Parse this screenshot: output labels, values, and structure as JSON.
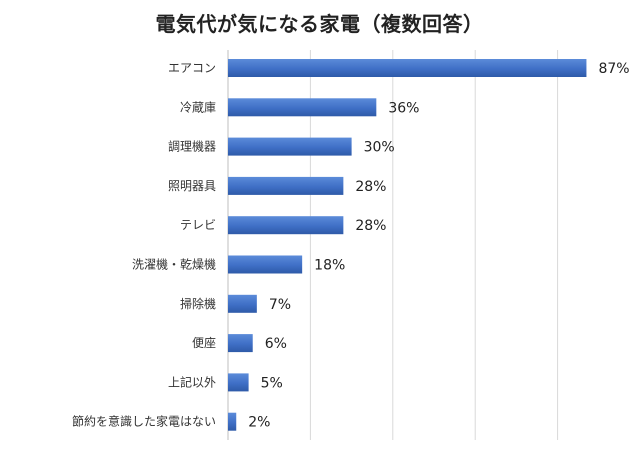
{
  "chart_data": {
    "type": "bar",
    "orientation": "horizontal",
    "title": "電気代が気になる家電（複数回答）",
    "xlabel": "",
    "ylabel": "",
    "xlim": [
      0,
      100
    ],
    "grid": true,
    "legend": "none",
    "bar_color": "#4472C4",
    "value_suffix": "%",
    "categories": [
      "エアコン",
      "冷蔵庫",
      "調理機器",
      "照明器具",
      "テレビ",
      "洗濯機・乾燥機",
      "掃除機",
      "便座",
      "上記以外",
      "節約を意識した家電はない"
    ],
    "values": [
      87,
      36,
      30,
      28,
      28,
      18,
      7,
      6,
      5,
      2
    ]
  }
}
